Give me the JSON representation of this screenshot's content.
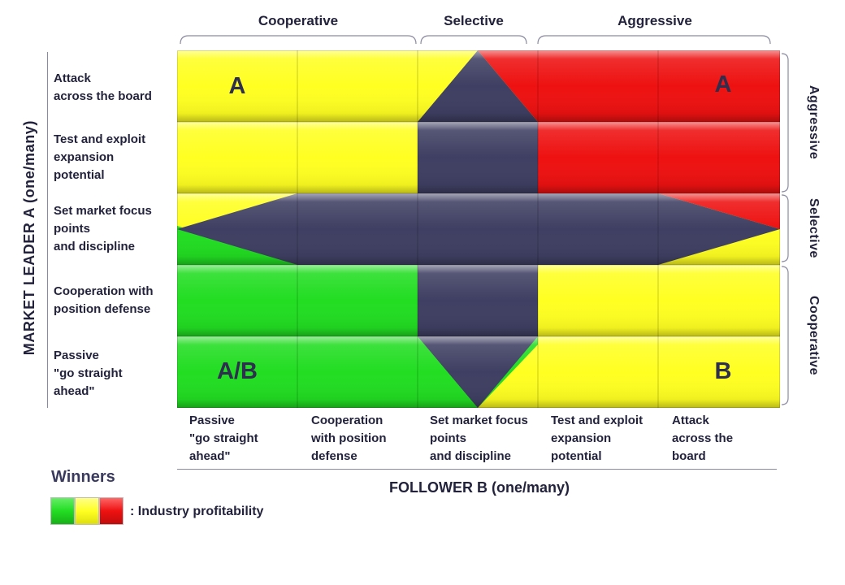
{
  "top_groups": [
    "Cooperative",
    "Selective",
    "Aggressive"
  ],
  "side_groups": [
    "Aggressive",
    "Selective",
    "Cooperative"
  ],
  "row_labels": [
    "Attack\nacross the board",
    "Test and exploit\nexpansion\npotential",
    "Set market focus\npoints\nand discipline",
    "Cooperation with\nposition defense",
    "Passive\n\"go straight\nahead\""
  ],
  "col_labels": [
    "Passive\n \"go straight\nahead\"",
    "Cooperation\nwith position\ndefense",
    "Set market focus\npoints\nand discipline",
    "Test and exploit\nexpansion\npotential",
    "Attack\nacross the\nboard"
  ],
  "y_axis_title": "MARKET LEADER A (one/many)",
  "x_axis_title": "FOLLOWER B (one/many)",
  "cell_letters": {
    "top_left": "A",
    "top_right": "A",
    "bottom_left": "A/B",
    "bottom_right": "B"
  },
  "legend": {
    "title": "Winners",
    "text": ": Industry  profitability",
    "colors": [
      "#22dd22",
      "#ffff22",
      "#ee1111"
    ]
  },
  "colors": {
    "green": "#22dd22",
    "yellow": "#ffff22",
    "red": "#ee1111",
    "navy": "#3f3f63"
  }
}
